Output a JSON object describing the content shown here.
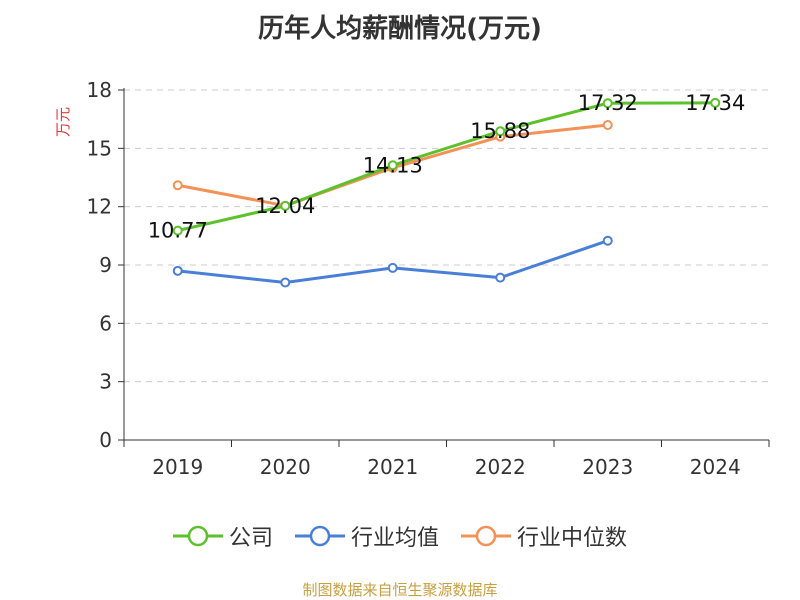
{
  "chart_data": {
    "type": "line",
    "title": "历年人均薪酬情况(万元)",
    "ylabel": "万元",
    "xlabel": "",
    "categories": [
      "2019",
      "2020",
      "2021",
      "2022",
      "2023",
      "2024"
    ],
    "ylim": [
      0,
      18
    ],
    "yticks": [
      0,
      3,
      6,
      9,
      12,
      15,
      18
    ],
    "grid": true,
    "legend_position": "bottom",
    "series": [
      {
        "name": "公司",
        "color": "#5cc12a",
        "values": [
          10.77,
          12.04,
          14.13,
          15.88,
          17.32,
          17.34
        ],
        "labels": [
          "10.77",
          "12.04",
          "14.13",
          "15.88",
          "17.32",
          "17.34"
        ]
      },
      {
        "name": "行业均值",
        "color": "#4a7fd8",
        "values": [
          8.7,
          8.1,
          8.85,
          8.35,
          10.25,
          null
        ]
      },
      {
        "name": "行业中位数",
        "color": "#f39157",
        "values": [
          13.1,
          12.05,
          14.0,
          15.6,
          16.2,
          null
        ]
      }
    ]
  },
  "source_note": "制图数据来自恒生聚源数据库",
  "colors": {
    "title": "#333333",
    "ylabel": "#e03a3a",
    "grid": "#cccccc",
    "axis": "#333333",
    "source": "#c8a040"
  }
}
